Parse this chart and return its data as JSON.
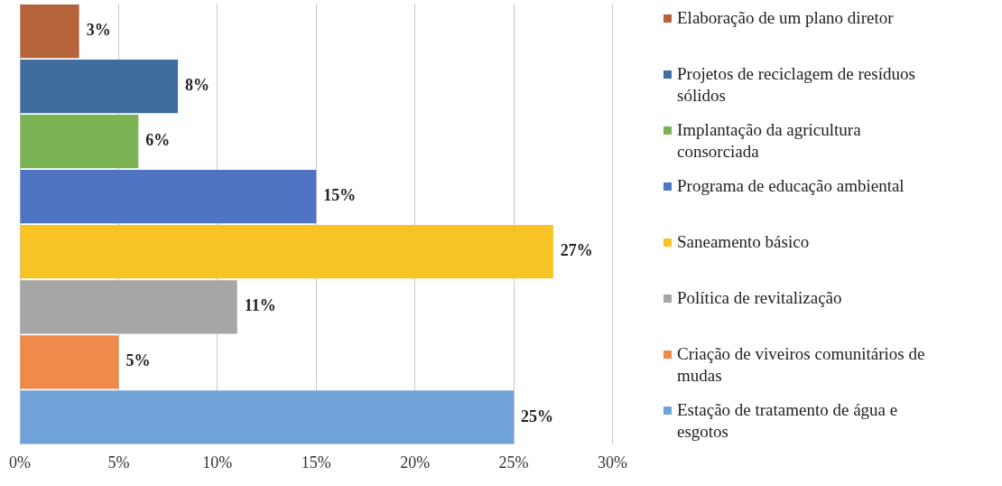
{
  "chart_data": {
    "type": "bar",
    "orientation": "horizontal",
    "categories": [
      null,
      null,
      null,
      null,
      null,
      null,
      null,
      null
    ],
    "series": [
      {
        "name": "Elaboração de um plano diretor",
        "color": "#b5633a",
        "values": [
          3,
          null,
          null,
          null,
          null,
          null,
          null,
          null
        ],
        "value_labels": [
          "3%",
          null,
          null,
          null,
          null,
          null,
          null,
          null
        ]
      },
      {
        "name": "Projetos de reciclagem de resíduos sólidos",
        "color": "#3f6e9e",
        "values": [
          null,
          8,
          null,
          null,
          null,
          null,
          null,
          null
        ],
        "value_labels": [
          null,
          "8%",
          null,
          null,
          null,
          null,
          null,
          null
        ]
      },
      {
        "name": "Implantação da agricultura consorciada",
        "color": "#7cb455",
        "values": [
          null,
          null,
          6,
          null,
          null,
          null,
          null,
          null
        ],
        "value_labels": [
          null,
          null,
          "6%",
          null,
          null,
          null,
          null,
          null
        ]
      },
      {
        "name": "Programa de educação ambiental",
        "color": "#4f74c4",
        "values": [
          null,
          null,
          null,
          15,
          null,
          null,
          null,
          null
        ],
        "value_labels": [
          null,
          null,
          null,
          "15%",
          null,
          null,
          null,
          null
        ]
      },
      {
        "name": "Saneamento básico",
        "color": "#f7c325",
        "values": [
          null,
          null,
          null,
          null,
          27,
          null,
          null,
          null
        ],
        "value_labels": [
          null,
          null,
          null,
          null,
          "27%",
          null,
          null,
          null
        ]
      },
      {
        "name": "Política de revitalização",
        "color": "#a6a6a6",
        "values": [
          null,
          null,
          null,
          null,
          null,
          11,
          null,
          null
        ],
        "value_labels": [
          null,
          null,
          null,
          null,
          null,
          "11%",
          null,
          null
        ]
      },
      {
        "name": "Criação de viveiros comunitários de mudas",
        "color": "#ef8a4a",
        "values": [
          null,
          null,
          null,
          null,
          null,
          null,
          5,
          null
        ],
        "value_labels": [
          null,
          null,
          null,
          null,
          null,
          null,
          "5%",
          null
        ]
      },
      {
        "name": "Estação de tratamento de água e esgotos",
        "color": "#6fa3d8",
        "values": [
          null,
          null,
          null,
          null,
          null,
          null,
          null,
          25
        ],
        "value_labels": [
          null,
          null,
          null,
          null,
          null,
          null,
          null,
          "25%"
        ]
      }
    ],
    "xlim": [
      0,
      30
    ],
    "xticks": [
      {
        "value": 0,
        "label": "0%"
      },
      {
        "value": 5,
        "label": "5%"
      },
      {
        "value": 10,
        "label": "10%"
      },
      {
        "value": 15,
        "label": "15%"
      },
      {
        "value": 20,
        "label": "20%"
      },
      {
        "value": 25,
        "label": "25%"
      },
      {
        "value": 30,
        "label": "30%"
      }
    ],
    "grid": "x",
    "legend": "right",
    "tick_labels": "x"
  }
}
